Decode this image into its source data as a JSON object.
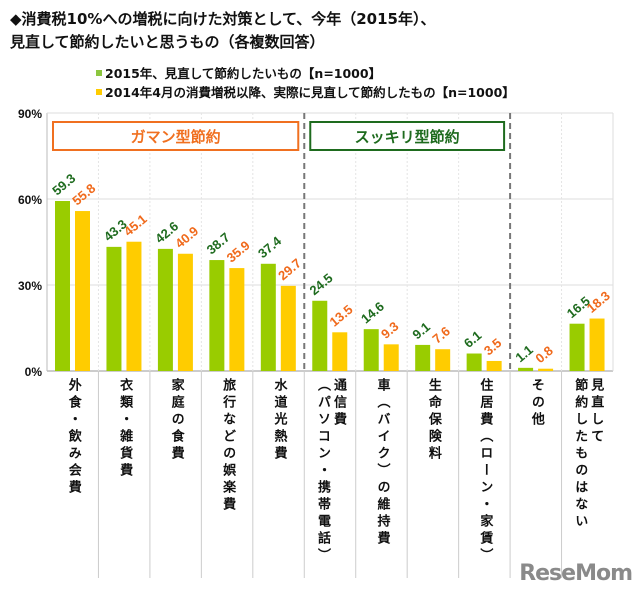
{
  "title_lines": [
    "◆消費税10%への増税に向けた対策として、今年（2015年）、",
    "見直して節約したいと思うもの（各複数回答）"
  ],
  "legend": [
    {
      "label": "2015年、見直して節約したいもの【n=1000】",
      "color": "#8cc63f"
    },
    {
      "label": "2014年4月の消費増税以降、実際に見直して節約したもの【n=1000】",
      "color": "#ffcc00"
    }
  ],
  "groups": [
    {
      "label": "ガマン型節約",
      "color": "#f07020"
    },
    {
      "label": "スッキリ型節約",
      "color": "#1e6b1e"
    }
  ],
  "logo": "ReseMom",
  "chart_data": {
    "type": "bar",
    "ylim": [
      0,
      90
    ],
    "yticks": [
      "0%",
      "30%",
      "60%",
      "90%"
    ],
    "grid": true,
    "legend_position": "top",
    "categories": [
      [
        "外食・飲み会費"
      ],
      [
        "衣類・雑貨費"
      ],
      [
        "家庭の食費"
      ],
      [
        "旅行などの娯楽費"
      ],
      [
        "水道光熱費"
      ],
      [
        "通信費",
        "（パソコン・携帯電話）"
      ],
      [
        "車（バイク）の維持費"
      ],
      [
        "生命保険料"
      ],
      [
        "住居費（ローン・家賃）"
      ],
      [
        "その他"
      ],
      [
        "見直して",
        "節約したものはない"
      ]
    ],
    "series": [
      {
        "name": "2015年、見直して節約したいもの【n=1000】",
        "color": "#99cc00",
        "label_color": "#1e6b1e",
        "values": [
          59.3,
          43.3,
          42.6,
          38.7,
          37.4,
          24.5,
          14.6,
          9.1,
          6.1,
          1.1,
          16.5
        ]
      },
      {
        "name": "2014年4月の消費増税以降、実際に見直して節約したもの【n=1000】",
        "color": "#ffcc00",
        "label_color": "#f06a1c",
        "values": [
          55.8,
          45.1,
          40.9,
          35.9,
          29.7,
          13.5,
          9.3,
          7.6,
          3.5,
          0.8,
          18.3
        ]
      }
    ]
  }
}
